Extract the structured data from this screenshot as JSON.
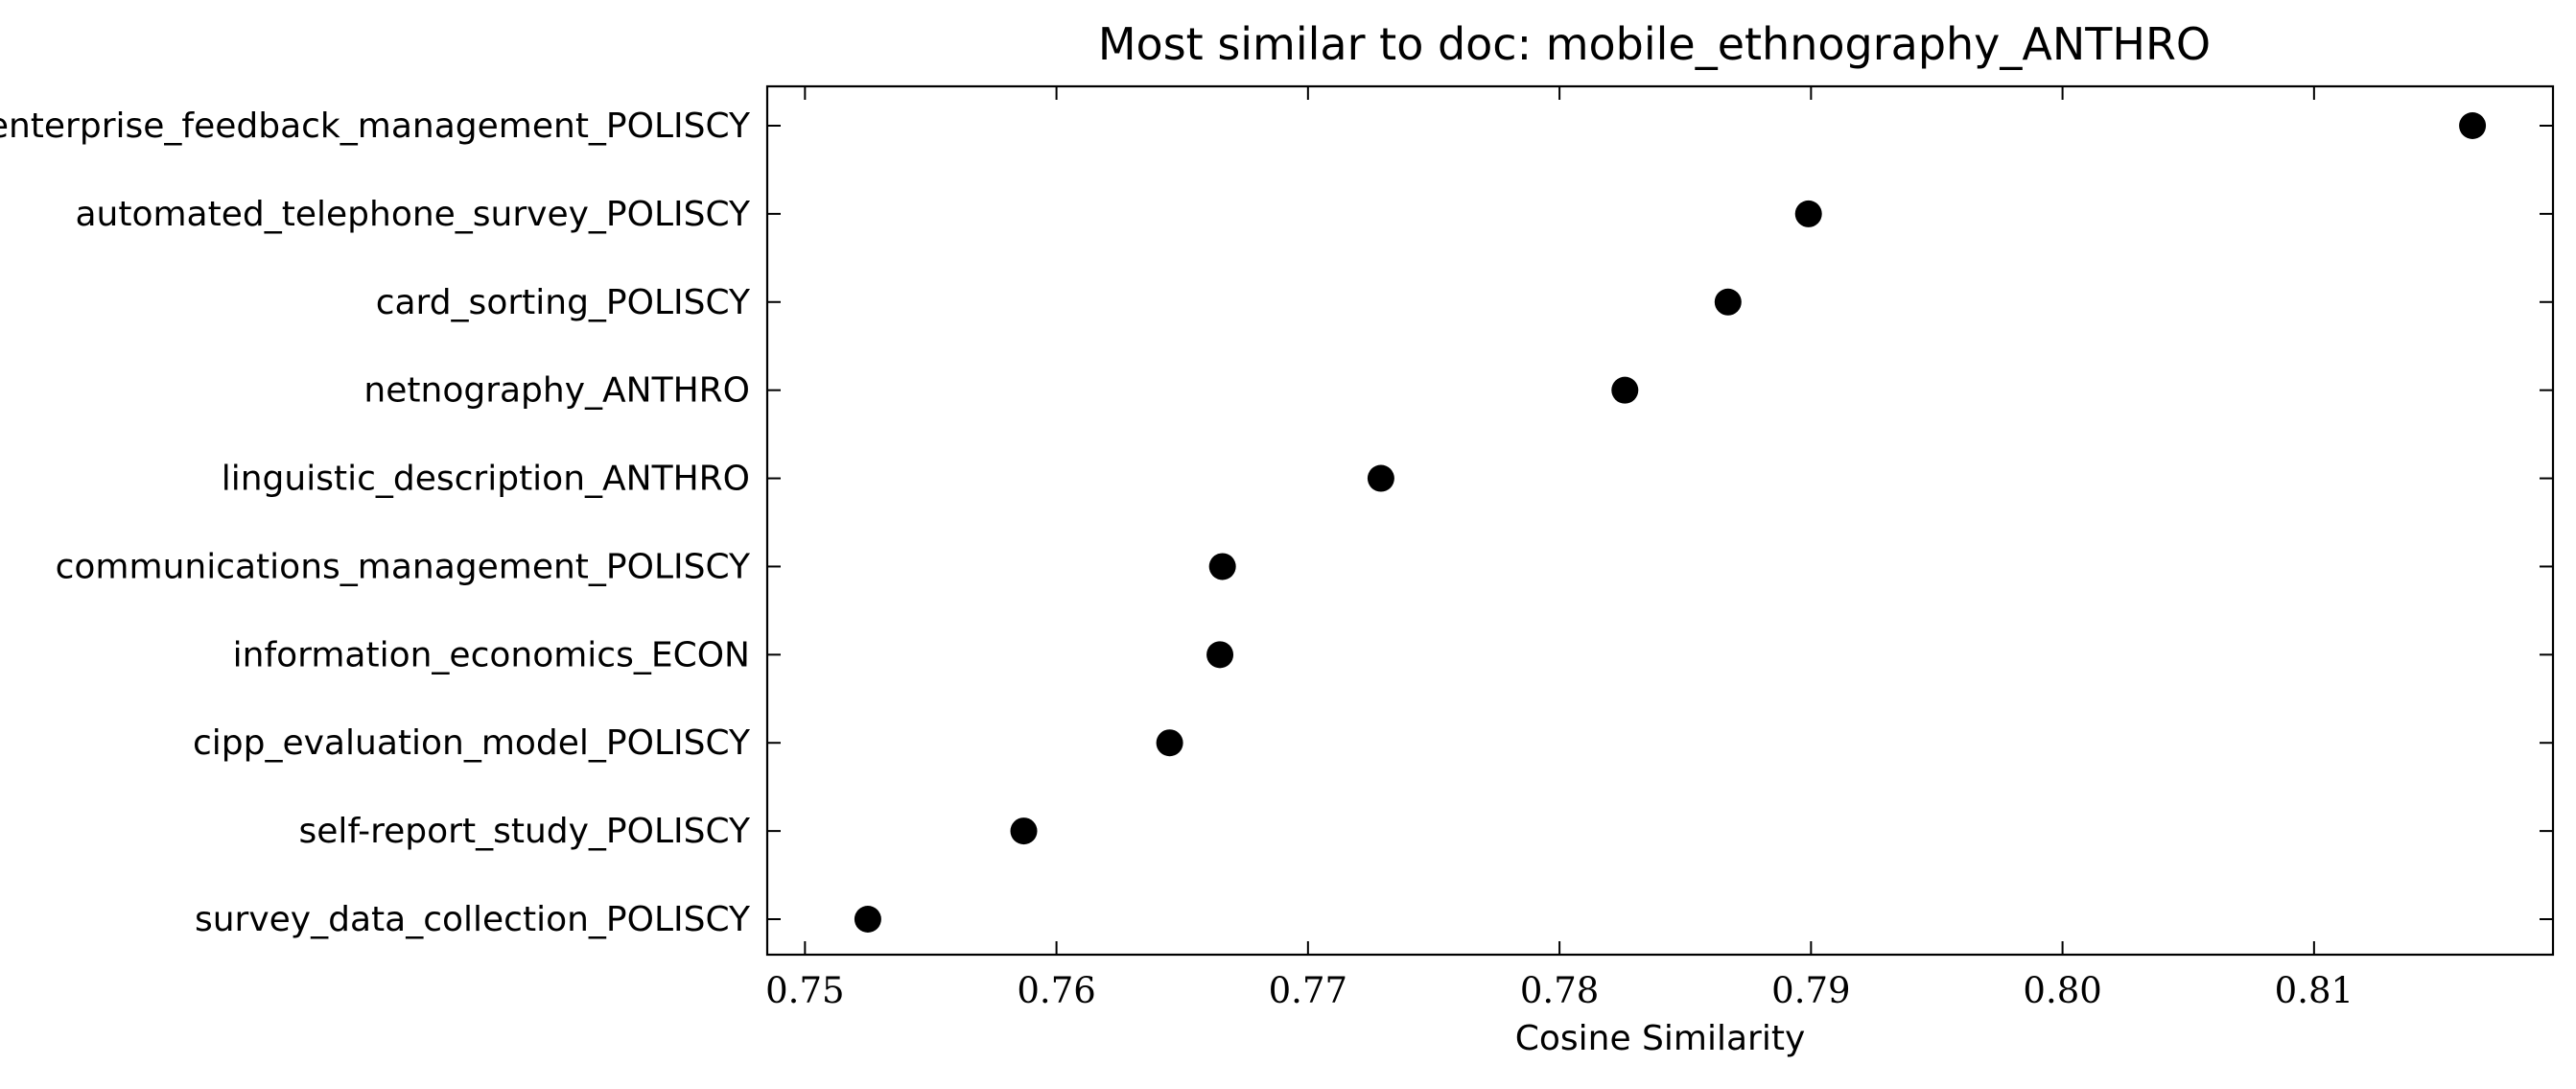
{
  "chart_data": {
    "type": "scatter",
    "title": "Most similar to doc: mobile_ethnography_ANTHRO",
    "xlabel": "Cosine Similarity",
    "ylabel": "",
    "xlim": [
      0.7485,
      0.8195
    ],
    "xticks": [
      0.75,
      0.76,
      0.77,
      0.78,
      0.79,
      0.8,
      0.81
    ],
    "xtick_labels": [
      "0.75",
      "0.76",
      "0.77",
      "0.78",
      "0.79",
      "0.80",
      "0.81"
    ],
    "grid": false,
    "legend": "none",
    "marker_color": "#000000",
    "categories": [
      "enterprise_feedback_management_POLISCY",
      "automated_telephone_survey_POLISCY",
      "card_sorting_POLISCY",
      "netnography_ANTHRO",
      "linguistic_description_ANTHRO",
      "communications_management_POLISCY",
      "information_economics_ECON",
      "cipp_evaluation_model_POLISCY",
      "self-report_study_POLISCY",
      "survey_data_collection_POLISCY"
    ],
    "values": [
      0.8163,
      0.7899,
      0.7867,
      0.7826,
      0.7729,
      0.7666,
      0.7665,
      0.7645,
      0.7587,
      0.7525
    ]
  }
}
